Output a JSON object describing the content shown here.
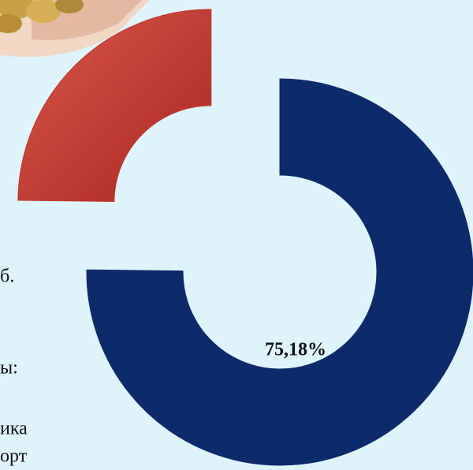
{
  "chart_data": {
    "type": "pie",
    "donut": true,
    "series": [
      {
        "name": null,
        "values": [
          75.18,
          24.82
        ],
        "value_labels": [
          "75,18%",
          null
        ],
        "colors": [
          "#0d2a6b",
          "#c0362c"
        ]
      }
    ],
    "exploded": [
      false,
      true
    ]
  },
  "text_fragments": [
    "б.",
    "ы:",
    "ика",
    "орт"
  ]
}
